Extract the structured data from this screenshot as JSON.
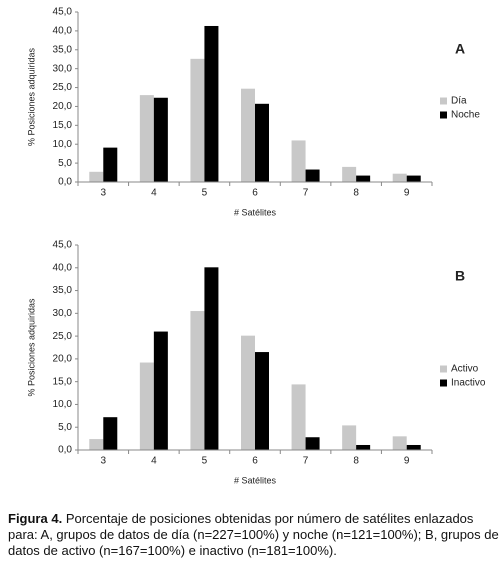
{
  "chart_data": [
    {
      "type": "bar",
      "annotation": "A",
      "xlabel": "# Satélites",
      "ylabel": "% Posiciones adquiridas",
      "categories": [
        "3",
        "4",
        "5",
        "6",
        "7",
        "8",
        "9"
      ],
      "series": [
        {
          "name": "Día",
          "color": "#c8c8c8",
          "values": [
            2.7,
            23.0,
            32.6,
            24.7,
            11.0,
            4.0,
            2.2
          ]
        },
        {
          "name": "Noche",
          "color": "#000000",
          "values": [
            9.1,
            22.3,
            41.3,
            20.7,
            3.3,
            1.7,
            1.7
          ]
        }
      ],
      "ylim": [
        0,
        45
      ],
      "yticks": [
        {
          "value": 0,
          "label": "0,0"
        },
        {
          "value": 5,
          "label": "5,0"
        },
        {
          "value": 10,
          "label": "10,0"
        },
        {
          "value": 15,
          "label": "15,0"
        },
        {
          "value": 20,
          "label": "20,0"
        },
        {
          "value": 25,
          "label": "25,0"
        },
        {
          "value": 30,
          "label": "30,0"
        },
        {
          "value": 35,
          "label": "35,0"
        },
        {
          "value": 40,
          "label": "40,0"
        },
        {
          "value": 45,
          "label": "45,0"
        }
      ],
      "grid": false
    },
    {
      "type": "bar",
      "annotation": "B",
      "xlabel": "# Satélites",
      "ylabel": "% Posiciones adquiridas",
      "categories": [
        "3",
        "4",
        "5",
        "6",
        "7",
        "8",
        "9"
      ],
      "series": [
        {
          "name": "Activo",
          "color": "#c8c8c8",
          "values": [
            2.4,
            19.2,
            30.5,
            25.1,
            14.4,
            5.4,
            3.0
          ]
        },
        {
          "name": "Inactivo",
          "color": "#000000",
          "values": [
            7.2,
            26.0,
            40.1,
            21.5,
            2.8,
            1.1,
            1.1
          ]
        }
      ],
      "ylim": [
        0,
        45
      ],
      "yticks": [
        {
          "value": 0,
          "label": "0,0"
        },
        {
          "value": 5,
          "label": "5,0"
        },
        {
          "value": 10,
          "label": "10,0"
        },
        {
          "value": 15,
          "label": "15,0"
        },
        {
          "value": 20,
          "label": "20,0"
        },
        {
          "value": 25,
          "label": "25,0"
        },
        {
          "value": 30,
          "label": "30,0"
        },
        {
          "value": 35,
          "label": "35,0"
        },
        {
          "value": 40,
          "label": "40,0"
        },
        {
          "value": 45,
          "label": "45,0"
        }
      ],
      "grid": false
    }
  ],
  "caption": {
    "label": "Figura 4.",
    "text": "Porcentaje de posiciones obtenidas por número de satélites enlazados para: A, grupos de datos de día (n=227=100%) y noche (n=121=100%); B, grupos de datos de activo (n=167=100%) e inactivo (n=181=100%)."
  }
}
